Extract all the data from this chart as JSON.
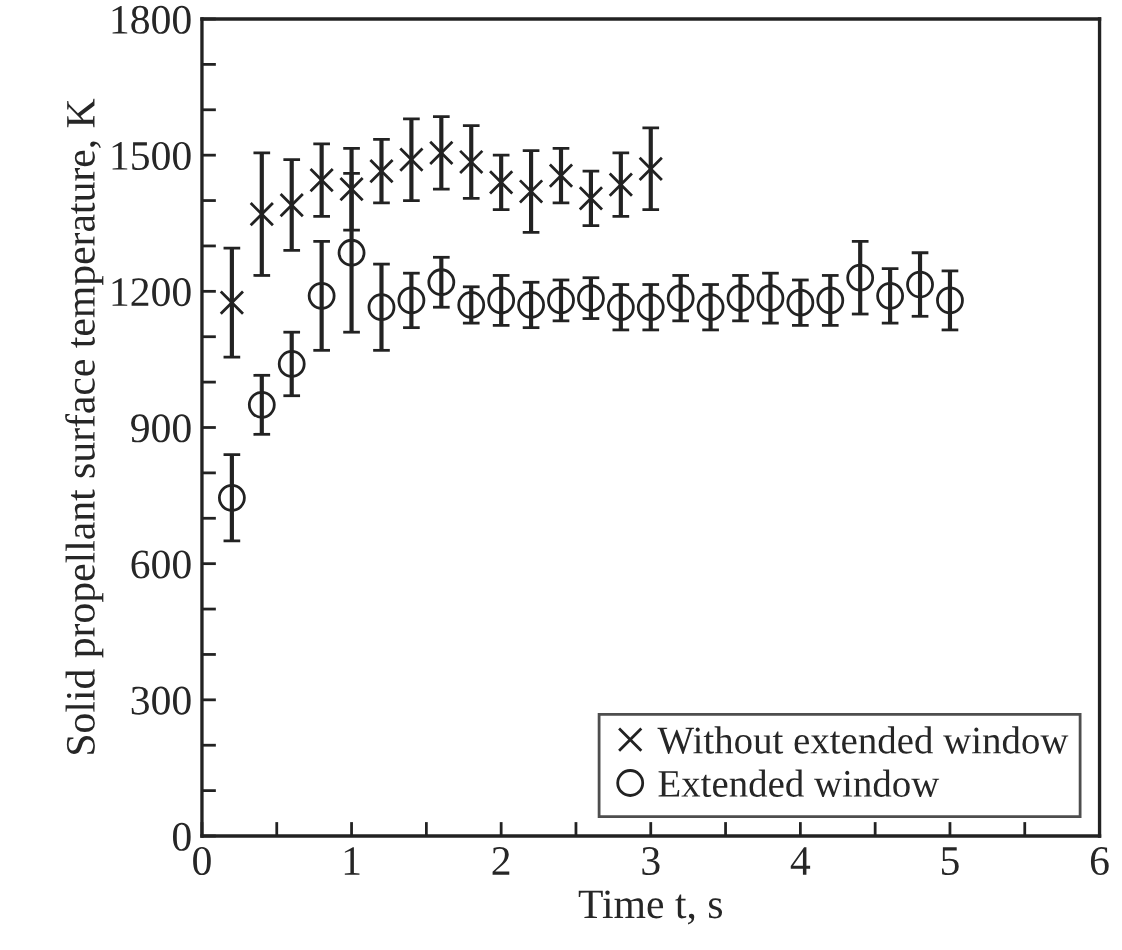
{
  "chart_data": {
    "type": "scatter",
    "xlabel": "Time t, s",
    "ylabel": "Solid propellant surface temperature, K",
    "xlim": [
      0,
      6
    ],
    "ylim": [
      0,
      1800
    ],
    "xticks": [
      0,
      {
        "value": 0.5,
        "label": null
      },
      1,
      {
        "value": 1.5,
        "label": null
      },
      2,
      {
        "value": 2.5,
        "label": null
      },
      3,
      {
        "value": 3.5,
        "label": null
      },
      4,
      {
        "value": 4.5,
        "label": null
      },
      5,
      {
        "value": 5.5,
        "label": null
      },
      6
    ],
    "yticks": [
      0,
      {
        "value": 100,
        "label": null
      },
      {
        "value": 200,
        "label": null
      },
      300,
      {
        "value": 400,
        "label": null
      },
      {
        "value": 500,
        "label": null
      },
      600,
      {
        "value": 700,
        "label": null
      },
      {
        "value": 800,
        "label": null
      },
      900,
      {
        "value": 1000,
        "label": null
      },
      {
        "value": 1100,
        "label": null
      },
      1200,
      {
        "value": 1300,
        "label": null
      },
      {
        "value": 1400,
        "label": null
      },
      1500,
      {
        "value": 1600,
        "label": null
      },
      {
        "value": 1700,
        "label": null
      },
      1800
    ],
    "grid": false,
    "legend": "bottom right",
    "series": [
      {
        "name": "Without extended window",
        "color": "#222222",
        "marker": "cross",
        "x": [
          0.2,
          0.4,
          0.6,
          0.8,
          1.0,
          1.2,
          1.4,
          1.6,
          1.8,
          2.0,
          2.2,
          2.4,
          2.6,
          2.8,
          3.0
        ],
        "values": [
          1175,
          1370,
          1390,
          1445,
          1425,
          1465,
          1490,
          1505,
          1485,
          1440,
          1420,
          1455,
          1405,
          1435,
          1470
        ],
        "errors": [
          120,
          135,
          100,
          80,
          90,
          70,
          90,
          80,
          80,
          60,
          90,
          60,
          60,
          70,
          90
        ]
      },
      {
        "name": "Extended window",
        "color": "#222222",
        "marker": "circle",
        "x": [
          0.2,
          0.4,
          0.6,
          0.8,
          1.0,
          1.2,
          1.4,
          1.6,
          1.8,
          2.0,
          2.2,
          2.4,
          2.6,
          2.8,
          3.0,
          3.2,
          3.4,
          3.6,
          3.8,
          4.0,
          4.2,
          4.4,
          4.6,
          4.8,
          5.0
        ],
        "values": [
          745,
          950,
          1040,
          1190,
          1285,
          1165,
          1180,
          1220,
          1170,
          1180,
          1170,
          1180,
          1185,
          1165,
          1165,
          1185,
          1165,
          1185,
          1185,
          1175,
          1180,
          1230,
          1190,
          1215,
          1180
        ],
        "errors": [
          95,
          65,
          70,
          120,
          175,
          95,
          60,
          55,
          40,
          55,
          50,
          45,
          45,
          50,
          50,
          50,
          50,
          50,
          55,
          50,
          55,
          80,
          60,
          70,
          65
        ]
      }
    ]
  }
}
